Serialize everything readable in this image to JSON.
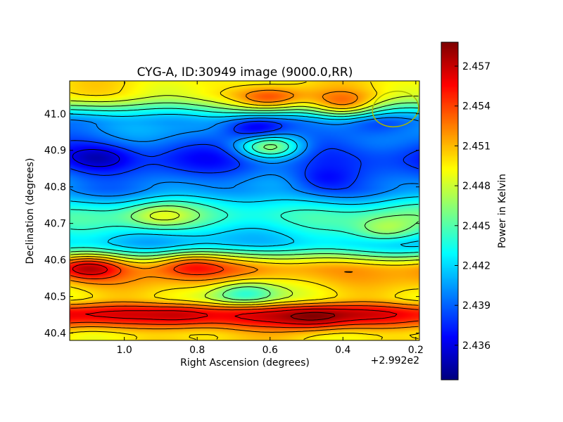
{
  "chart_data": {
    "type": "heatmap",
    "title": "CYG-A, ID:30949 image (9000.0,RR)",
    "xlabel": "Right Ascension (degrees)",
    "ylabel": "Declination (degrees)",
    "x_offset_label": "+2.992e2",
    "x_ticks": [
      "1.0",
      "0.8",
      "0.6",
      "0.4",
      "0.2"
    ],
    "y_ticks": [
      "40.4",
      "40.5",
      "40.6",
      "40.7",
      "40.8",
      "40.9",
      "41.0"
    ],
    "xlim": [
      1.15,
      0.19
    ],
    "ylim": [
      40.38,
      41.09
    ],
    "colorbar": {
      "label": "Power in Kelvin",
      "ticks": [
        "2.436",
        "2.439",
        "2.442",
        "2.445",
        "2.448",
        "2.451",
        "2.454",
        "2.457"
      ],
      "range": [
        2.4334,
        2.4588
      ],
      "colormap": "jet"
    },
    "field": {
      "description_bands": [
        {
          "dec": 41.06,
          "value": 2.4495
        },
        {
          "dec": 40.97,
          "value": 2.4405
        },
        {
          "dec": 40.88,
          "value": 2.4375
        },
        {
          "dec": 40.8,
          "value": 2.44
        },
        {
          "dec": 40.72,
          "value": 2.4445
        },
        {
          "dec": 40.65,
          "value": 2.4415
        },
        {
          "dec": 40.57,
          "value": 2.452
        },
        {
          "dec": 40.5,
          "value": 2.4495
        },
        {
          "dec": 40.45,
          "value": 2.456
        },
        {
          "dec": 40.39,
          "value": 2.45
        }
      ],
      "features": [
        {
          "ra": 1.07,
          "dec": 40.88,
          "value": 2.4345
        },
        {
          "ra": 0.64,
          "dec": 40.96,
          "value": 2.435
        },
        {
          "ra": 0.46,
          "dec": 40.82,
          "value": 2.437
        },
        {
          "ra": 0.31,
          "dec": 40.97,
          "value": 2.438
        },
        {
          "ra": 0.6,
          "dec": 40.91,
          "value": 2.447
        },
        {
          "ra": 0.6,
          "dec": 41.04,
          "value": 2.453
        },
        {
          "ra": 0.4,
          "dec": 41.02,
          "value": 2.451
        },
        {
          "ra": 0.82,
          "dec": 40.59,
          "value": 2.454
        },
        {
          "ra": 1.1,
          "dec": 40.58,
          "value": 2.4575
        },
        {
          "ra": 0.84,
          "dec": 40.45,
          "value": 2.458
        },
        {
          "ra": 0.48,
          "dec": 40.44,
          "value": 2.4585
        },
        {
          "ra": 0.67,
          "dec": 40.51,
          "value": 2.444
        },
        {
          "ra": 0.28,
          "dec": 40.68,
          "value": 2.447
        },
        {
          "ra": 0.9,
          "dec": 40.72,
          "value": 2.448
        }
      ]
    }
  }
}
